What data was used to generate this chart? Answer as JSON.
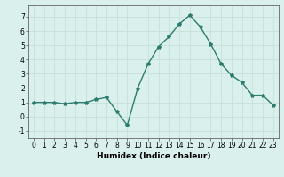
{
  "x": [
    0,
    1,
    2,
    3,
    4,
    5,
    6,
    7,
    8,
    9,
    10,
    11,
    12,
    13,
    14,
    15,
    16,
    17,
    18,
    19,
    20,
    21,
    22,
    23
  ],
  "y": [
    1.0,
    1.0,
    1.0,
    0.9,
    1.0,
    1.0,
    1.2,
    1.35,
    0.35,
    -0.6,
    2.0,
    3.7,
    4.9,
    5.6,
    6.5,
    7.1,
    6.3,
    5.1,
    3.7,
    2.9,
    2.4,
    1.5,
    1.5,
    0.8
  ],
  "line_color": "#2d7d6e",
  "marker": "*",
  "marker_size": 3,
  "xlabel": "Humidex (Indice chaleur)",
  "ylim": [
    -1.5,
    7.8
  ],
  "xlim": [
    -0.5,
    23.5
  ],
  "yticks": [
    -1,
    0,
    1,
    2,
    3,
    4,
    5,
    6,
    7
  ],
  "xticks": [
    0,
    1,
    2,
    3,
    4,
    5,
    6,
    7,
    8,
    9,
    10,
    11,
    12,
    13,
    14,
    15,
    16,
    17,
    18,
    19,
    20,
    21,
    22,
    23
  ],
  "grid_color": "#c8e0da",
  "bg_color": "#daf0ec",
  "tick_fontsize": 5.5,
  "xlabel_fontsize": 6.5,
  "line_width": 1.0
}
